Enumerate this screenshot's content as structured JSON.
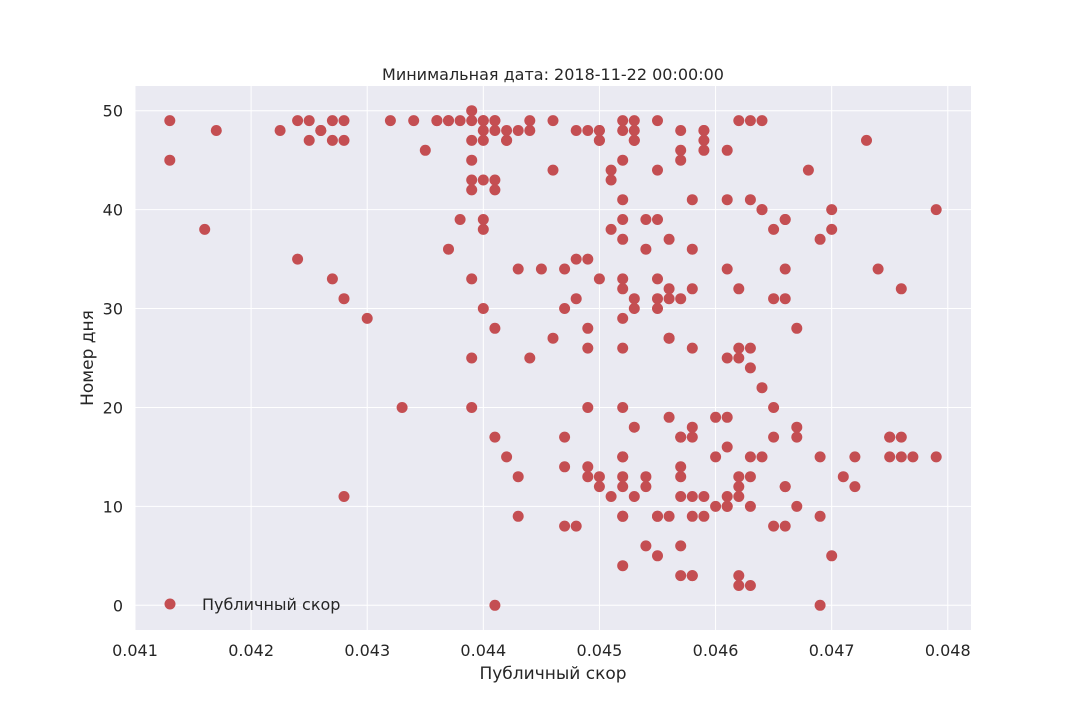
{
  "chart_data": {
    "type": "scatter",
    "title": "Минимальная дата: 2018-11-22 00:00:00",
    "xlabel": "Публичный скор",
    "ylabel": "Номер дня",
    "xlim": [
      0.041,
      0.0482
    ],
    "ylim": [
      -2.5,
      52.5
    ],
    "xticks": [
      0.041,
      0.042,
      0.043,
      0.044,
      0.045,
      0.046,
      0.047,
      0.048
    ],
    "xtick_labels": [
      "0.041",
      "0.042",
      "0.043",
      "0.044",
      "0.045",
      "0.046",
      "0.047",
      "0.048"
    ],
    "yticks": [
      0,
      10,
      20,
      30,
      40,
      50
    ],
    "ytick_labels": [
      "0",
      "10",
      "20",
      "30",
      "40",
      "50"
    ],
    "grid": true,
    "legend_position": "lower-left",
    "background_color": "#eaeaf2",
    "grid_color": "#ffffff",
    "series": [
      {
        "name": "Публичный скор",
        "color": "#c44e52",
        "points": [
          [
            0.0413,
            49
          ],
          [
            0.0413,
            45
          ],
          [
            0.0416,
            38
          ],
          [
            0.0417,
            48
          ],
          [
            0.04225,
            48
          ],
          [
            0.0424,
            49
          ],
          [
            0.0425,
            47
          ],
          [
            0.0425,
            49
          ],
          [
            0.0426,
            48
          ],
          [
            0.0426,
            48
          ],
          [
            0.0427,
            47
          ],
          [
            0.0427,
            49
          ],
          [
            0.0428,
            49
          ],
          [
            0.0428,
            47
          ],
          [
            0.0424,
            35
          ],
          [
            0.0427,
            33
          ],
          [
            0.0428,
            31
          ],
          [
            0.043,
            29
          ],
          [
            0.0428,
            11
          ],
          [
            0.0433,
            20
          ],
          [
            0.0432,
            49
          ],
          [
            0.0434,
            49
          ],
          [
            0.0436,
            49
          ],
          [
            0.0436,
            49
          ],
          [
            0.0437,
            49
          ],
          [
            0.0437,
            49
          ],
          [
            0.0438,
            49
          ],
          [
            0.0439,
            49
          ],
          [
            0.044,
            49
          ],
          [
            0.044,
            49
          ],
          [
            0.0441,
            49
          ],
          [
            0.0441,
            49
          ],
          [
            0.0439,
            50
          ],
          [
            0.0435,
            46
          ],
          [
            0.0439,
            47
          ],
          [
            0.044,
            47
          ],
          [
            0.0439,
            45
          ],
          [
            0.044,
            48
          ],
          [
            0.0441,
            48
          ],
          [
            0.0442,
            47
          ],
          [
            0.0442,
            47
          ],
          [
            0.0442,
            48
          ],
          [
            0.0443,
            48
          ],
          [
            0.0439,
            43
          ],
          [
            0.0439,
            42
          ],
          [
            0.044,
            43
          ],
          [
            0.0441,
            43
          ],
          [
            0.0441,
            42
          ],
          [
            0.0438,
            39
          ],
          [
            0.044,
            39
          ],
          [
            0.044,
            38
          ],
          [
            0.0437,
            36
          ],
          [
            0.0439,
            33
          ],
          [
            0.044,
            30
          ],
          [
            0.0441,
            28
          ],
          [
            0.0439,
            25
          ],
          [
            0.0439,
            20
          ],
          [
            0.0441,
            17
          ],
          [
            0.0442,
            15
          ],
          [
            0.0443,
            13
          ],
          [
            0.0443,
            9
          ],
          [
            0.0441,
            0
          ],
          [
            0.0443,
            34
          ],
          [
            0.0444,
            25
          ],
          [
            0.0445,
            34
          ],
          [
            0.0444,
            49
          ],
          [
            0.0444,
            48
          ],
          [
            0.0446,
            49
          ],
          [
            0.0446,
            44
          ],
          [
            0.0448,
            48
          ],
          [
            0.0449,
            48
          ],
          [
            0.045,
            47
          ],
          [
            0.045,
            48
          ],
          [
            0.045,
            48
          ],
          [
            0.045,
            47
          ],
          [
            0.0451,
            43
          ],
          [
            0.0451,
            44
          ],
          [
            0.0452,
            49
          ],
          [
            0.0452,
            48
          ],
          [
            0.0452,
            45
          ],
          [
            0.0453,
            47
          ],
          [
            0.0453,
            49
          ],
          [
            0.0453,
            48
          ],
          [
            0.0453,
            47
          ],
          [
            0.0455,
            49
          ],
          [
            0.0455,
            44
          ],
          [
            0.0457,
            45
          ],
          [
            0.0457,
            48
          ],
          [
            0.0457,
            46
          ],
          [
            0.0459,
            48
          ],
          [
            0.0459,
            47
          ],
          [
            0.0459,
            46
          ],
          [
            0.0459,
            48
          ],
          [
            0.0461,
            46
          ],
          [
            0.0462,
            49
          ],
          [
            0.0463,
            49
          ],
          [
            0.0464,
            49
          ],
          [
            0.0447,
            34
          ],
          [
            0.0448,
            35
          ],
          [
            0.0447,
            30
          ],
          [
            0.0448,
            31
          ],
          [
            0.0446,
            27
          ],
          [
            0.0449,
            26
          ],
          [
            0.0449,
            35
          ],
          [
            0.045,
            33
          ],
          [
            0.0449,
            28
          ],
          [
            0.0451,
            38
          ],
          [
            0.0452,
            39
          ],
          [
            0.0452,
            37
          ],
          [
            0.0452,
            33
          ],
          [
            0.0452,
            32
          ],
          [
            0.0452,
            41
          ],
          [
            0.0453,
            31
          ],
          [
            0.0453,
            30
          ],
          [
            0.0452,
            29
          ],
          [
            0.0452,
            26
          ],
          [
            0.0453,
            18
          ],
          [
            0.0454,
            39
          ],
          [
            0.0454,
            36
          ],
          [
            0.0455,
            39
          ],
          [
            0.0455,
            31
          ],
          [
            0.0455,
            30
          ],
          [
            0.0455,
            33
          ],
          [
            0.0456,
            31
          ],
          [
            0.0456,
            37
          ],
          [
            0.0456,
            32
          ],
          [
            0.0457,
            31
          ],
          [
            0.0456,
            27
          ],
          [
            0.0456,
            27
          ],
          [
            0.0458,
            36
          ],
          [
            0.0458,
            32
          ],
          [
            0.0458,
            26
          ],
          [
            0.0458,
            41
          ],
          [
            0.0449,
            20
          ],
          [
            0.0452,
            20
          ],
          [
            0.0447,
            17
          ],
          [
            0.0447,
            14
          ],
          [
            0.0449,
            14
          ],
          [
            0.0449,
            13
          ],
          [
            0.045,
            12
          ],
          [
            0.045,
            13
          ],
          [
            0.0451,
            11
          ],
          [
            0.0452,
            15
          ],
          [
            0.0452,
            15
          ],
          [
            0.0452,
            13
          ],
          [
            0.0452,
            12
          ],
          [
            0.0452,
            9
          ],
          [
            0.0452,
            9
          ],
          [
            0.0453,
            11
          ],
          [
            0.0454,
            13
          ],
          [
            0.0454,
            12
          ],
          [
            0.0455,
            9
          ],
          [
            0.0455,
            9
          ],
          [
            0.0447,
            8
          ],
          [
            0.0448,
            8
          ],
          [
            0.0454,
            6
          ],
          [
            0.0455,
            5
          ],
          [
            0.0452,
            4
          ],
          [
            0.0456,
            19
          ],
          [
            0.0457,
            17
          ],
          [
            0.0457,
            17
          ],
          [
            0.0458,
            18
          ],
          [
            0.0458,
            17
          ],
          [
            0.0457,
            14
          ],
          [
            0.0457,
            13
          ],
          [
            0.0457,
            11
          ],
          [
            0.0458,
            11
          ],
          [
            0.0459,
            11
          ],
          [
            0.0456,
            9
          ],
          [
            0.0458,
            9
          ],
          [
            0.0459,
            9
          ],
          [
            0.046,
            10
          ],
          [
            0.046,
            15
          ],
          [
            0.046,
            19
          ],
          [
            0.0457,
            6
          ],
          [
            0.0457,
            3
          ],
          [
            0.0458,
            3
          ],
          [
            0.0458,
            3
          ],
          [
            0.0461,
            34
          ],
          [
            0.0461,
            25
          ],
          [
            0.0461,
            41
          ],
          [
            0.0462,
            32
          ],
          [
            0.0462,
            25
          ],
          [
            0.0462,
            26
          ],
          [
            0.0463,
            26
          ],
          [
            0.0463,
            24
          ],
          [
            0.0463,
            41
          ],
          [
            0.0464,
            40
          ],
          [
            0.0464,
            40
          ],
          [
            0.0465,
            38
          ],
          [
            0.0466,
            34
          ],
          [
            0.0466,
            39
          ],
          [
            0.0466,
            39
          ],
          [
            0.0465,
            31
          ],
          [
            0.0466,
            31
          ],
          [
            0.0467,
            28
          ],
          [
            0.0464,
            22
          ],
          [
            0.0465,
            20
          ],
          [
            0.0461,
            19
          ],
          [
            0.0461,
            16
          ],
          [
            0.0462,
            13
          ],
          [
            0.0462,
            12
          ],
          [
            0.0461,
            11
          ],
          [
            0.0462,
            11
          ],
          [
            0.0461,
            10
          ],
          [
            0.0461,
            10
          ],
          [
            0.0463,
            15
          ],
          [
            0.0463,
            10
          ],
          [
            0.0463,
            13
          ],
          [
            0.0464,
            15
          ],
          [
            0.0465,
            17
          ],
          [
            0.0466,
            12
          ],
          [
            0.0466,
            12
          ],
          [
            0.0465,
            8
          ],
          [
            0.0466,
            8
          ],
          [
            0.0467,
            10
          ],
          [
            0.0467,
            18
          ],
          [
            0.0467,
            17
          ],
          [
            0.0462,
            3
          ],
          [
            0.0462,
            2
          ],
          [
            0.0463,
            2
          ],
          [
            0.0468,
            44
          ],
          [
            0.0469,
            37
          ],
          [
            0.047,
            40
          ],
          [
            0.047,
            38
          ],
          [
            0.0473,
            47
          ],
          [
            0.0469,
            15
          ],
          [
            0.0469,
            9
          ],
          [
            0.0469,
            0
          ],
          [
            0.047,
            5
          ],
          [
            0.0471,
            13
          ],
          [
            0.0472,
            12
          ],
          [
            0.0472,
            15
          ],
          [
            0.0474,
            34
          ],
          [
            0.0475,
            17
          ],
          [
            0.0475,
            17
          ],
          [
            0.0475,
            15
          ],
          [
            0.0476,
            32
          ],
          [
            0.0476,
            15
          ],
          [
            0.0476,
            17
          ],
          [
            0.0477,
            15
          ],
          [
            0.0479,
            15
          ],
          [
            0.0479,
            40
          ]
        ]
      }
    ]
  }
}
